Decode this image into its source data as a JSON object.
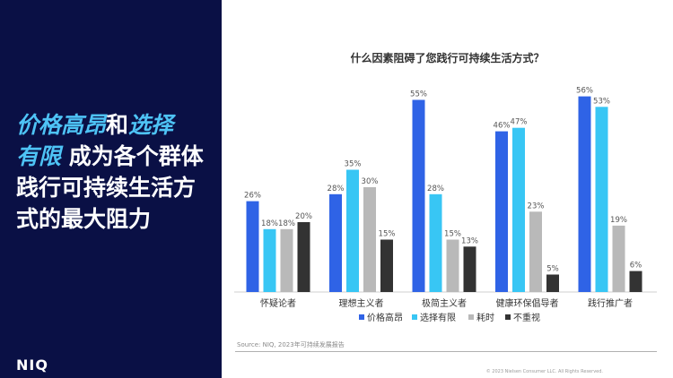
{
  "headline": {
    "hl1": "价格高昂",
    "mid": "和",
    "hl2": "选择",
    "hl3": "有限",
    "rest": " 成为各个群体践行可持续生活方式的最大阻力"
  },
  "logo": "NIQ",
  "source": "Source: NIQ, 2023年可持续发展报告",
  "copyright": "© 2023 Nielsen Consumer LLC. All Rights Reserved.",
  "colors": {
    "panel": "#0a1045",
    "accent": "#4ec3f5",
    "series": [
      "#2f63e6",
      "#38c6f4",
      "#b9b9b9",
      "#333333"
    ]
  },
  "chart_data": {
    "type": "bar",
    "title": "什么因素阻碍了您践行可持续生活方式？",
    "categories": [
      "怀疑论者",
      "理想主义者",
      "极简主义者",
      "健康环保倡导者",
      "践行推广者"
    ],
    "series": [
      {
        "name": "价格高昂",
        "values": [
          26,
          28,
          55,
          46,
          56
        ],
        "labels": [
          "26%",
          "28%",
          "55%",
          "46%",
          "56%"
        ]
      },
      {
        "name": "选择有限",
        "values": [
          18,
          35,
          28,
          47,
          53
        ],
        "labels": [
          "18%",
          "35%",
          "28%",
          "47%",
          "53%"
        ]
      },
      {
        "name": "耗时",
        "values": [
          18,
          30,
          15,
          23,
          19
        ],
        "labels": [
          "18%",
          "30%",
          "15%",
          "23%",
          "19%"
        ]
      },
      {
        "name": "不重视",
        "values": [
          20,
          15,
          13,
          5,
          6
        ],
        "labels": [
          "20%",
          "15%",
          "13%",
          "5%",
          "6%"
        ]
      }
    ],
    "ylim": [
      0,
      60
    ],
    "grid": false,
    "legend": "bottom"
  }
}
